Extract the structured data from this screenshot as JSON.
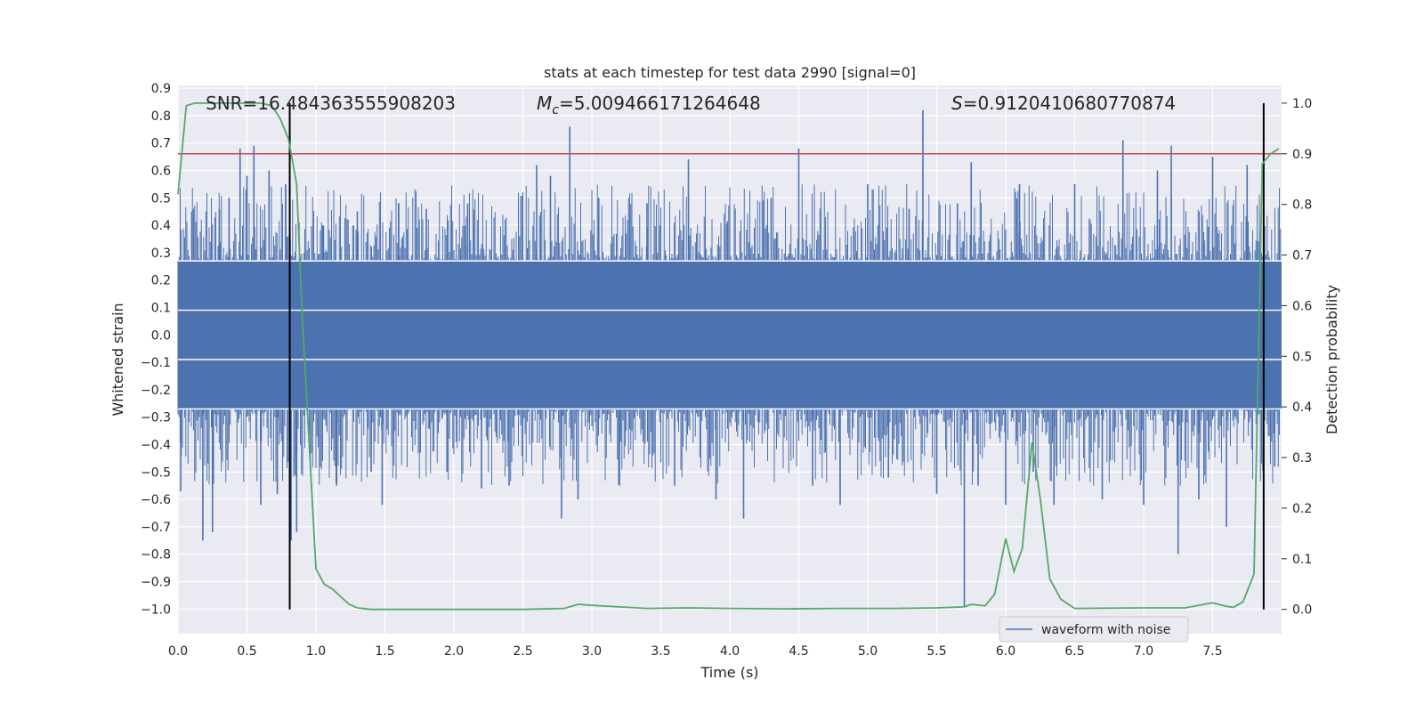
{
  "chart_data": {
    "type": "line",
    "title": "stats at each timestep for test data 2990 [signal=0]",
    "xlabel": "Time (s)",
    "ylabel": "Whitened strain",
    "ylabel_right": "Detection probability",
    "xlim": [
      0.0,
      8.0
    ],
    "ylim": [
      -1.09,
      0.91
    ],
    "ylim_right": [
      -0.048,
      1.035
    ],
    "x_ticks": [
      "0.0",
      "0.5",
      "1.0",
      "1.5",
      "2.0",
      "2.5",
      "3.0",
      "3.5",
      "4.0",
      "4.5",
      "5.0",
      "5.5",
      "6.0",
      "6.5",
      "7.0",
      "7.5"
    ],
    "y_ticks": [
      "0.9",
      "0.8",
      "0.7",
      "0.6",
      "0.5",
      "0.4",
      "0.3",
      "0.2",
      "0.1",
      "0.0",
      "−0.1",
      "−0.2",
      "−0.3",
      "−0.4",
      "−0.5",
      "−0.6",
      "−0.7",
      "−0.8",
      "−0.9",
      "−1.0"
    ],
    "y_ticks_right": [
      "1.0",
      "0.9",
      "0.8",
      "0.7",
      "0.6",
      "0.5",
      "0.4",
      "0.3",
      "0.2",
      "0.1",
      "0.0"
    ],
    "annotations": {
      "snr": "SNR=16.484363555908203",
      "mc_symbol": "M",
      "mc_sub": "c",
      "mc_value": "=5.009466171264648",
      "s_symbol": "S",
      "s_value": "=0.9120410680770874"
    },
    "threshold_line": {
      "y_right": 0.9,
      "color": "#c44e52"
    },
    "vertical_lines": [
      0.81,
      7.87
    ],
    "grid": true,
    "legend": {
      "placement": "lower-right"
    },
    "series": [
      {
        "name": "waveform with noise",
        "axis": "left",
        "color": "#4c72b0",
        "style": "noise",
        "core_amplitude": 0.27,
        "spikes": [
          [
            0.02,
            -0.57
          ],
          [
            0.1,
            0.45
          ],
          [
            0.18,
            -0.75
          ],
          [
            0.25,
            -0.72
          ],
          [
            0.3,
            0.46
          ],
          [
            0.37,
            0.5
          ],
          [
            0.45,
            0.68
          ],
          [
            0.5,
            0.58
          ],
          [
            0.55,
            0.69
          ],
          [
            0.6,
            -0.62
          ],
          [
            0.66,
            0.6
          ],
          [
            0.72,
            -0.58
          ],
          [
            0.78,
            0.55
          ],
          [
            0.82,
            -0.75
          ],
          [
            0.86,
            -0.72
          ],
          [
            1.05,
            0.4
          ],
          [
            1.15,
            -0.55
          ],
          [
            1.3,
            0.45
          ],
          [
            1.4,
            -0.5
          ],
          [
            1.48,
            -0.62
          ],
          [
            1.6,
            0.48
          ],
          [
            1.8,
            0.46
          ],
          [
            1.95,
            -0.5
          ],
          [
            2.1,
            0.48
          ],
          [
            2.2,
            -0.56
          ],
          [
            2.4,
            -0.55
          ],
          [
            2.6,
            0.62
          ],
          [
            2.7,
            0.58
          ],
          [
            2.78,
            -0.67
          ],
          [
            2.84,
            0.76
          ],
          [
            2.9,
            -0.6
          ],
          [
            3.05,
            0.5
          ],
          [
            3.2,
            -0.55
          ],
          [
            3.4,
            0.48
          ],
          [
            3.6,
            -0.55
          ],
          [
            3.7,
            0.64
          ],
          [
            3.9,
            -0.6
          ],
          [
            4.1,
            -0.67
          ],
          [
            4.3,
            0.5
          ],
          [
            4.5,
            0.68
          ],
          [
            4.6,
            -0.55
          ],
          [
            4.8,
            -0.62
          ],
          [
            5.0,
            0.55
          ],
          [
            5.15,
            -0.52
          ],
          [
            5.3,
            0.46
          ],
          [
            5.4,
            0.82
          ],
          [
            5.5,
            -0.58
          ],
          [
            5.65,
            0.48
          ],
          [
            5.7,
            -0.99
          ],
          [
            5.75,
            0.63
          ],
          [
            5.8,
            -0.55
          ],
          [
            6.0,
            -0.62
          ],
          [
            6.1,
            0.55
          ],
          [
            6.2,
            -0.5
          ],
          [
            6.35,
            -0.62
          ],
          [
            6.5,
            0.55
          ],
          [
            6.7,
            -0.6
          ],
          [
            6.85,
            0.71
          ],
          [
            7.0,
            -0.62
          ],
          [
            7.1,
            0.6
          ],
          [
            7.2,
            0.69
          ],
          [
            7.25,
            -0.8
          ],
          [
            7.4,
            -0.6
          ],
          [
            7.5,
            0.65
          ],
          [
            7.6,
            -0.7
          ],
          [
            7.75,
            0.62
          ],
          [
            7.95,
            -0.48
          ]
        ]
      },
      {
        "name": "",
        "axis": "right",
        "color": "#55a868",
        "x": [
          0.0,
          0.06,
          0.12,
          0.2,
          0.3,
          0.4,
          0.5,
          0.6,
          0.68,
          0.74,
          0.8,
          0.86,
          0.9,
          0.95,
          1.0,
          1.06,
          1.12,
          1.18,
          1.24,
          1.3,
          1.4,
          1.6,
          2.0,
          2.5,
          2.8,
          2.9,
          3.0,
          3.2,
          3.4,
          3.7,
          4.0,
          4.4,
          4.8,
          5.2,
          5.5,
          5.7,
          5.75,
          5.85,
          5.92,
          6.0,
          6.06,
          6.12,
          6.19,
          6.25,
          6.32,
          6.4,
          6.5,
          7.0,
          7.3,
          7.5,
          7.6,
          7.65,
          7.72,
          7.8,
          7.86,
          7.92,
          7.98
        ],
        "y": [
          0.82,
          0.995,
          1.0,
          1.0,
          1.0,
          1.0,
          1.0,
          1.0,
          0.995,
          0.97,
          0.93,
          0.84,
          0.58,
          0.33,
          0.08,
          0.05,
          0.04,
          0.025,
          0.01,
          0.003,
          0.0,
          0.0,
          0.0,
          0.0,
          0.002,
          0.01,
          0.008,
          0.005,
          0.002,
          0.003,
          0.002,
          0.001,
          0.002,
          0.002,
          0.003,
          0.005,
          0.01,
          0.007,
          0.03,
          0.14,
          0.075,
          0.12,
          0.33,
          0.22,
          0.06,
          0.02,
          0.002,
          0.003,
          0.003,
          0.013,
          0.006,
          0.004,
          0.015,
          0.07,
          0.88,
          0.9,
          0.91
        ]
      }
    ]
  }
}
